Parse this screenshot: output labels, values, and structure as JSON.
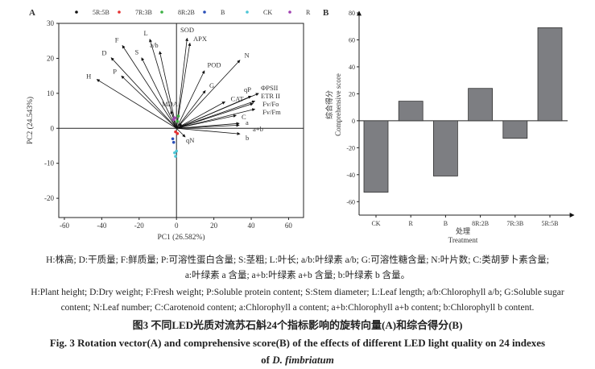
{
  "chart_data": [
    {
      "panel": "A",
      "type": "scatter",
      "xlabel": "PC1 (26.582%)",
      "ylabel": "PC2 (24.543%)",
      "xlim": [
        -63,
        68
      ],
      "ylim": [
        -25.5,
        30
      ],
      "xticks": [
        -60,
        -40,
        -20,
        0,
        20,
        40,
        60
      ],
      "yticks": [
        -20,
        -10,
        0,
        10,
        20,
        30
      ],
      "legend_position": "top",
      "legend": [
        {
          "name": "5R:5B",
          "color": "#111111"
        },
        {
          "name": "7R:3B",
          "color": "#e53030"
        },
        {
          "name": "8R:2B",
          "color": "#3cb043"
        },
        {
          "name": "B",
          "color": "#2a4fb8"
        },
        {
          "name": "CK",
          "color": "#4cc6d6"
        },
        {
          "name": "R",
          "color": "#a040b0"
        }
      ],
      "vectors": [
        {
          "label": "H",
          "x": -42.7,
          "y": 14.0
        },
        {
          "label": "D",
          "x": -35,
          "y": 20.2
        },
        {
          "label": "F",
          "x": -29,
          "y": 23.7
        },
        {
          "label": "P",
          "x": -29.5,
          "y": 15
        },
        {
          "label": "S",
          "x": -18.7,
          "y": 20.2
        },
        {
          "label": "L",
          "x": -14.3,
          "y": 25.5
        },
        {
          "label": "a/b",
          "x": -9,
          "y": 22
        },
        {
          "label": "MDA",
          "x": -3,
          "y": 5
        },
        {
          "label": "SOD",
          "x": 5.7,
          "y": 25.8
        },
        {
          "label": "APX",
          "x": 7.2,
          "y": 24.4
        },
        {
          "label": "POD",
          "x": 15,
          "y": 16.5
        },
        {
          "label": "N",
          "x": 34,
          "y": 19.5
        },
        {
          "label": "G",
          "x": 15.5,
          "y": 10.8
        },
        {
          "label": "CAT",
          "x": 26,
          "y": 7.6
        },
        {
          "label": "qP",
          "x": 40,
          "y": 9.2
        },
        {
          "label": "ΦPSII",
          "x": 44,
          "y": 10
        },
        {
          "label": "ETR II",
          "x": 42,
          "y": 7.8
        },
        {
          "label": "Fv/Fo",
          "x": 41,
          "y": 7.1
        },
        {
          "label": "Fv/Fm",
          "x": 42,
          "y": 5.5
        },
        {
          "label": "C",
          "x": 32,
          "y": 3.7
        },
        {
          "label": "a",
          "x": 33.6,
          "y": 1.4
        },
        {
          "label": "a+b",
          "x": 33.6,
          "y": 0.9
        },
        {
          "label": "b",
          "x": 34,
          "y": -1.6
        },
        {
          "label": "qN",
          "x": 4.7,
          "y": -2.5
        }
      ],
      "points": [
        {
          "series": "R",
          "x": -1,
          "y": 3
        },
        {
          "series": "R",
          "x": -1.5,
          "y": 2.5
        },
        {
          "series": "8R:2B",
          "x": 0.5,
          "y": 2
        },
        {
          "series": "8R:2B",
          "x": 1,
          "y": 3.5
        },
        {
          "series": "5R:5B",
          "x": 2,
          "y": 1
        },
        {
          "series": "5R:5B",
          "x": 2.5,
          "y": 0.5
        },
        {
          "series": "7R:3B",
          "x": -0.5,
          "y": -1
        },
        {
          "series": "7R:3B",
          "x": 0.5,
          "y": -1.5
        },
        {
          "series": "B",
          "x": -2,
          "y": -3
        },
        {
          "series": "B",
          "x": -1.5,
          "y": -4
        },
        {
          "series": "CK",
          "x": -1,
          "y": -7
        },
        {
          "series": "CK",
          "x": 0,
          "y": -6.5
        },
        {
          "series": "CK",
          "x": -0.5,
          "y": -8
        }
      ]
    },
    {
      "panel": "B",
      "type": "bar",
      "categories": [
        "CK",
        "R",
        "B",
        "8R:2B",
        "7R:3B",
        "5R:5B"
      ],
      "values": [
        -53,
        14.5,
        -41,
        24,
        -13,
        69
      ],
      "ylim": [
        -70,
        80
      ],
      "yticks": [
        -60,
        -40,
        -20,
        0,
        20,
        40,
        60,
        80
      ],
      "ylabel_cn": "综合得分",
      "ylabel": "Comprehensive score",
      "xlabel_cn": "处理",
      "xlabel": "Treatment",
      "bar_color": "#7d7e82"
    }
  ],
  "caption": {
    "cn_notes_1": "H:株高; D:干质量; F:鲜质量; P:可溶性蛋白含量; S:茎粗; L:叶长; a/b:叶绿素 a/b; G:可溶性糖含量; N:叶片数; C:类胡萝卜素含量;",
    "cn_notes_2": "a:叶绿素 a 含量; a+b:叶绿素 a+b 含量; b:叶绿素 b 含量。",
    "en_notes_1": "H:Plant height; D:Dry weight; F:Fresh weight; P:Soluble protein content; S:Stem diameter; L:Leaf length; a/b:Chlorophyll a/b; G:Soluble sugar",
    "en_notes_2": "content; N:Leaf number; C:Carotenoid content; a:Chlorophyll a content; a+b:Chlorophyll a+b content; b:Chlorophyll b content.",
    "cn_title": "图3   不同LED光质对流苏石斛24个指标影响的旋转向量(A)和综合得分(B)",
    "en_title_1": "Fig. 3    Rotation vector(A) and comprehensive score(B) of the effects of different LED light quality on 24 indexes",
    "en_title_2_prefix": "of ",
    "en_title_2_species": "D. fimbriatum"
  }
}
